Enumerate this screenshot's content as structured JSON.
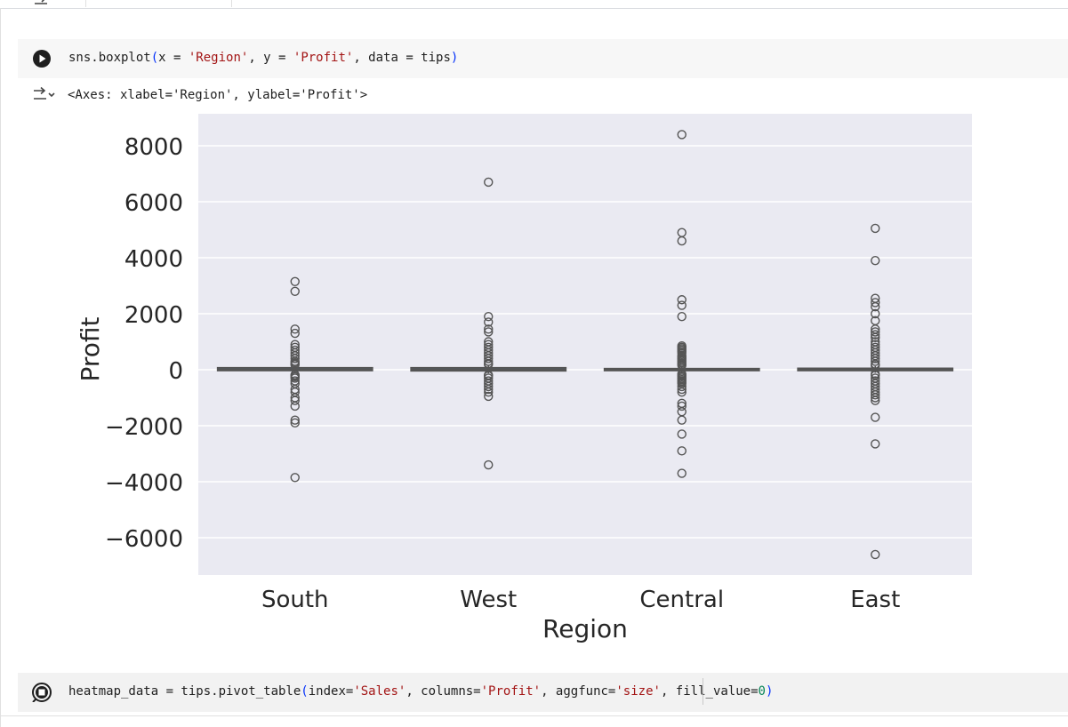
{
  "cell1": {
    "code": {
      "prefix": "sns.boxplot",
      "open_paren": "(",
      "part1": "x = ",
      "x_str": "'Region'",
      "part2": ", y = ",
      "y_str": "'Profit'",
      "part3": ", data = tips",
      "close_paren": ")"
    }
  },
  "output": {
    "text": "<Axes: xlabel='Region', ylabel='Profit'>"
  },
  "cell2": {
    "code": {
      "prefix": "heatmap_data = tips.pivot_table",
      "open_paren": "(",
      "part1": "index=",
      "index_str": "'Sales'",
      "part2": ", columns=",
      "columns_str": "'Profit'",
      "part3": ", aggfunc=",
      "aggfunc_str": "'size'",
      "part4": ", fill_value=",
      "fill_num": "0",
      "close_paren": ")"
    }
  },
  "icons": {
    "run": "play-circle-icon",
    "running": "stop-circle-icon",
    "output": "output-toggle-icon"
  },
  "colors": {
    "plot_bg": "#eaeaf2",
    "grid": "#ffffff",
    "box": "#555555",
    "text": "#262626"
  },
  "chart_data": {
    "type": "box",
    "xlabel": "Region",
    "ylabel": "Profit",
    "categories": [
      "South",
      "West",
      "Central",
      "East"
    ],
    "yticks": [
      -6000,
      -4000,
      -2000,
      0,
      2000,
      4000,
      6000,
      8000
    ],
    "ytick_labels": [
      "−6000",
      "−4000",
      "−2000",
      "0",
      "2000",
      "4000",
      "6000",
      "8000"
    ],
    "ylim": [
      -7000,
      8500
    ],
    "grid": true,
    "boxes": [
      {
        "q1": -30,
        "median": 10,
        "q3": 70,
        "whisker_low": -110,
        "whisker_high": 150
      },
      {
        "q1": -40,
        "median": 10,
        "q3": 70,
        "whisker_low": -130,
        "whisker_high": 160
      },
      {
        "q1": -30,
        "median": 5,
        "q3": 40,
        "whisker_low": -100,
        "whisker_high": 110
      },
      {
        "q1": -30,
        "median": 10,
        "q3": 50,
        "whisker_low": -110,
        "whisker_high": 130
      }
    ],
    "outliers": [
      [
        3150,
        2800,
        1450,
        1300,
        900,
        800,
        700,
        600,
        500,
        400,
        300,
        250,
        200,
        180,
        -180,
        -200,
        -250,
        -300,
        -400,
        -500,
        -700,
        -800,
        -1000,
        -1100,
        -1300,
        -1800,
        -1900,
        -3850
      ],
      [
        6700,
        1900,
        1700,
        1450,
        1350,
        1000,
        900,
        800,
        700,
        600,
        500,
        400,
        300,
        220,
        190,
        -190,
        -220,
        -300,
        -400,
        -500,
        -600,
        -700,
        -800,
        -950,
        -3400
      ],
      [
        8400,
        4900,
        4600,
        2500,
        2300,
        1900,
        850,
        800,
        750,
        700,
        650,
        600,
        500,
        450,
        400,
        350,
        300,
        250,
        200,
        150,
        -150,
        -200,
        -250,
        -300,
        -350,
        -400,
        -450,
        -500,
        -600,
        -700,
        -800,
        -1200,
        -1300,
        -1500,
        -1800,
        -2300,
        -2900,
        -3700
      ],
      [
        5050,
        3900,
        2550,
        2400,
        2250,
        2000,
        1750,
        1450,
        1350,
        1250,
        1150,
        1000,
        900,
        800,
        700,
        600,
        500,
        400,
        300,
        200,
        150,
        -150,
        -200,
        -300,
        -400,
        -500,
        -600,
        -700,
        -800,
        -900,
        -1000,
        -1100,
        -1700,
        -2650,
        -6600
      ]
    ]
  }
}
